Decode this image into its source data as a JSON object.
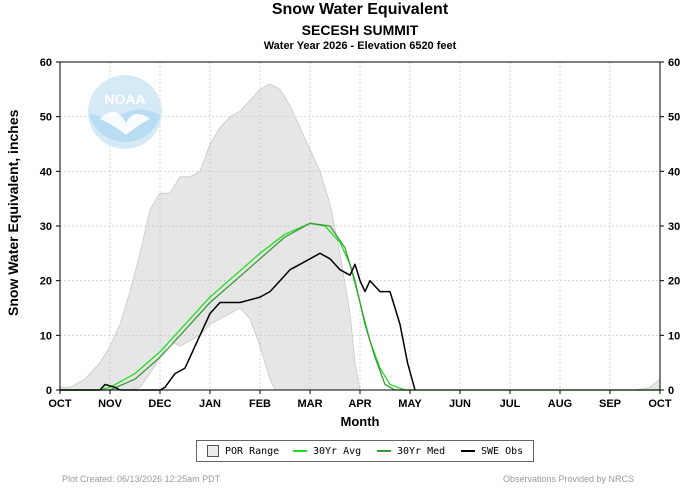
{
  "chart_data": {
    "type": "line",
    "title": "Snow Water Equivalent",
    "subtitle": "SECESH SUMMIT",
    "subtitle2": "Water Year 2026 -  Elevation 6520 feet",
    "xlabel": "Month",
    "ylabel": "Snow Water Equivalent, inches",
    "ylim": [
      0,
      60
    ],
    "yticks": [
      0,
      10,
      20,
      30,
      40,
      50,
      60
    ],
    "months": [
      "OCT",
      "NOV",
      "DEC",
      "JAN",
      "FEB",
      "MAR",
      "APR",
      "MAY",
      "JUN",
      "JUL",
      "AUG",
      "SEP",
      "OCT"
    ],
    "grid": true,
    "legend_position": "bottom",
    "colors": {
      "por_fill": "#e6e6e6",
      "por_edge": "#c8c8c8",
      "avg": "#22dd22",
      "med": "#3a9a3a",
      "obs": "#000000",
      "subtitle": "#1a1acc"
    },
    "series": [
      {
        "name": "POR Range",
        "upper": [
          [
            0,
            0.5
          ],
          [
            0.2,
            0.5
          ],
          [
            0.5,
            2
          ],
          [
            0.8,
            5
          ],
          [
            1.0,
            8
          ],
          [
            1.2,
            12
          ],
          [
            1.4,
            18
          ],
          [
            1.6,
            25
          ],
          [
            1.8,
            33
          ],
          [
            2.0,
            36
          ],
          [
            2.2,
            36
          ],
          [
            2.4,
            39
          ],
          [
            2.6,
            39
          ],
          [
            2.8,
            40
          ],
          [
            3.0,
            45
          ],
          [
            3.2,
            48
          ],
          [
            3.4,
            50
          ],
          [
            3.6,
            51
          ],
          [
            3.8,
            53
          ],
          [
            4.0,
            55
          ],
          [
            4.2,
            56
          ],
          [
            4.4,
            55
          ],
          [
            4.6,
            52
          ],
          [
            4.8,
            48
          ],
          [
            5.0,
            44
          ],
          [
            5.2,
            40
          ],
          [
            5.4,
            34
          ],
          [
            5.6,
            25
          ],
          [
            5.8,
            14
          ],
          [
            5.9,
            5
          ],
          [
            6.0,
            0
          ]
        ],
        "lower": [
          [
            0,
            0
          ],
          [
            1.0,
            0
          ],
          [
            1.4,
            0
          ],
          [
            1.6,
            0.5
          ],
          [
            1.8,
            3
          ],
          [
            2.0,
            6
          ],
          [
            2.2,
            9
          ],
          [
            2.4,
            8
          ],
          [
            2.6,
            9
          ],
          [
            2.8,
            10
          ],
          [
            3.0,
            12
          ],
          [
            3.2,
            13
          ],
          [
            3.4,
            14
          ],
          [
            3.6,
            15
          ],
          [
            3.8,
            13
          ],
          [
            4.0,
            8
          ],
          [
            4.2,
            2
          ],
          [
            4.3,
            0
          ],
          [
            6.0,
            0
          ]
        ],
        "late_upper": [
          [
            11.5,
            0
          ],
          [
            11.8,
            0.5
          ],
          [
            12.0,
            2
          ]
        ]
      },
      {
        "name": "30Yr Avg",
        "points": [
          [
            0,
            0
          ],
          [
            0.8,
            0
          ],
          [
            1.0,
            0.5
          ],
          [
            1.5,
            3
          ],
          [
            2.0,
            7
          ],
          [
            2.5,
            12
          ],
          [
            3.0,
            17
          ],
          [
            3.5,
            21
          ],
          [
            4.0,
            25
          ],
          [
            4.5,
            28.5
          ],
          [
            5.0,
            30.5
          ],
          [
            5.3,
            30
          ],
          [
            5.6,
            27
          ],
          [
            5.8,
            23
          ],
          [
            6.0,
            16
          ],
          [
            6.2,
            9
          ],
          [
            6.4,
            4
          ],
          [
            6.6,
            1
          ],
          [
            6.9,
            0
          ],
          [
            12,
            0
          ]
        ]
      },
      {
        "name": "30Yr Med",
        "points": [
          [
            0,
            0
          ],
          [
            1.0,
            0
          ],
          [
            1.5,
            2
          ],
          [
            2.0,
            6
          ],
          [
            2.5,
            11
          ],
          [
            3.0,
            16
          ],
          [
            3.5,
            20
          ],
          [
            4.0,
            24
          ],
          [
            4.5,
            28
          ],
          [
            5.0,
            30.5
          ],
          [
            5.4,
            30
          ],
          [
            5.7,
            26
          ],
          [
            5.9,
            20
          ],
          [
            6.1,
            12
          ],
          [
            6.3,
            6
          ],
          [
            6.5,
            1
          ],
          [
            6.7,
            0
          ],
          [
            12,
            0
          ]
        ]
      },
      {
        "name": "SWE Obs",
        "points": [
          [
            0,
            0
          ],
          [
            0.8,
            0
          ],
          [
            0.9,
            1
          ],
          [
            1.1,
            0.5
          ],
          [
            1.2,
            0
          ],
          [
            2.0,
            0
          ],
          [
            2.1,
            0.5
          ],
          [
            2.3,
            3
          ],
          [
            2.5,
            4
          ],
          [
            2.6,
            6
          ],
          [
            2.8,
            10
          ],
          [
            3.0,
            14
          ],
          [
            3.2,
            16
          ],
          [
            3.4,
            16
          ],
          [
            3.6,
            16
          ],
          [
            3.8,
            16.5
          ],
          [
            4.0,
            17
          ],
          [
            4.2,
            18
          ],
          [
            4.4,
            20
          ],
          [
            4.6,
            22
          ],
          [
            4.8,
            23
          ],
          [
            5.0,
            24
          ],
          [
            5.2,
            25
          ],
          [
            5.4,
            24
          ],
          [
            5.6,
            22
          ],
          [
            5.8,
            21
          ],
          [
            5.9,
            23
          ],
          [
            6.0,
            20
          ],
          [
            6.1,
            18
          ],
          [
            6.2,
            20
          ],
          [
            6.4,
            18
          ],
          [
            6.6,
            18
          ],
          [
            6.8,
            12
          ],
          [
            6.95,
            5
          ],
          [
            7.1,
            0
          ]
        ]
      }
    ]
  },
  "legend": {
    "por": "POR Range",
    "avg": "30Yr Avg",
    "med": "30Yr Med",
    "obs": "SWE Obs"
  },
  "logo_text": "NOAA",
  "footer": {
    "left": "Plot Created:  06/13/2026 12:25am PDT",
    "right": "Observations Provided by NRCS"
  }
}
